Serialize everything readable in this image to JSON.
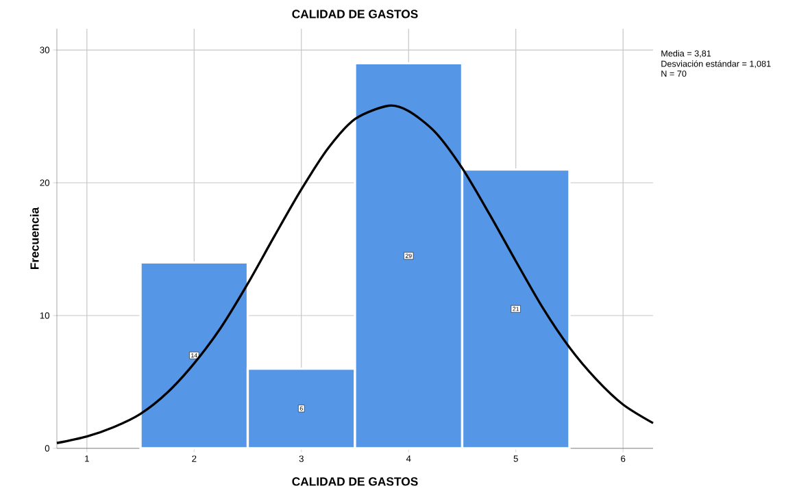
{
  "chart_data": {
    "type": "histogram",
    "title": "CALIDAD DE GASTOS",
    "xlabel": "CALIDAD DE GASTOS",
    "ylabel": "Frecuencia",
    "bins": [
      1.5,
      2.5,
      3.5,
      4.5,
      5.5
    ],
    "values": [
      14,
      6,
      29,
      21
    ],
    "color": "#5596e6",
    "value_labels": [
      "14",
      "6",
      "29",
      "21"
    ],
    "series": [
      {
        "type": "line",
        "color": "#000000",
        "x": [
          0.72,
          1,
          1.25,
          1.5,
          1.75,
          2,
          2.25,
          2.5,
          2.75,
          3,
          3.25,
          3.5,
          3.81,
          4,
          4.25,
          4.5,
          4.75,
          5,
          5.25,
          5.5,
          5.75,
          6,
          6.28
        ],
        "values": [
          0.4,
          0.9,
          1.6,
          2.6,
          4.2,
          6.4,
          9.1,
          12.4,
          16.0,
          19.5,
          22.6,
          24.8,
          25.8,
          25.4,
          23.8,
          21.1,
          17.7,
          14.1,
          10.6,
          7.6,
          5.2,
          3.3,
          1.9
        ]
      }
    ],
    "xlim": [
      0.72,
      6.28
    ],
    "ylim": [
      0,
      31.6
    ],
    "xticks": [
      1,
      2,
      3,
      4,
      5,
      6
    ],
    "yticks": [
      0,
      10,
      20,
      30
    ],
    "grid": true,
    "marker": "none",
    "annotations": [
      "Media = 3,81",
      "Desviación estándar = 1,081",
      "N = 70"
    ]
  }
}
